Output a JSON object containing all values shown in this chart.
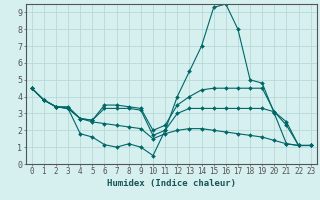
{
  "xlabel": "Humidex (Indice chaleur)",
  "ylabel": "",
  "bg_color": "#d6efef",
  "grid_color": "#b8d8d8",
  "line_color": "#006666",
  "xlim": [
    -0.5,
    23.5
  ],
  "ylim": [
    0,
    9.5
  ],
  "lines": [
    {
      "x": [
        0,
        1,
        2,
        3,
        4,
        5,
        6,
        7,
        8,
        9,
        10,
        11,
        12,
        13,
        14,
        15,
        16,
        17,
        18,
        19,
        20,
        21,
        22,
        23
      ],
      "y": [
        4.5,
        3.8,
        3.4,
        3.3,
        1.8,
        1.6,
        1.15,
        1.0,
        1.2,
        1.0,
        0.5,
        2.0,
        4.0,
        5.5,
        7.0,
        9.3,
        9.5,
        8.0,
        5.0,
        4.8,
        3.0,
        1.2,
        1.1,
        1.1
      ]
    },
    {
      "x": [
        0,
        1,
        2,
        3,
        4,
        5,
        6,
        7,
        8,
        9,
        10,
        11,
        12,
        13,
        14,
        15,
        16,
        17,
        18,
        19,
        20,
        21,
        22,
        23
      ],
      "y": [
        4.5,
        3.8,
        3.4,
        3.3,
        2.7,
        2.6,
        3.5,
        3.5,
        3.4,
        3.3,
        2.0,
        2.3,
        3.5,
        4.0,
        4.4,
        4.5,
        4.5,
        4.5,
        4.5,
        4.5,
        3.1,
        2.5,
        1.1,
        1.1
      ]
    },
    {
      "x": [
        0,
        1,
        2,
        3,
        4,
        5,
        6,
        7,
        8,
        9,
        10,
        11,
        12,
        13,
        14,
        15,
        16,
        17,
        18,
        19,
        20,
        21,
        22,
        23
      ],
      "y": [
        4.5,
        3.8,
        3.4,
        3.3,
        2.7,
        2.6,
        3.3,
        3.3,
        3.3,
        3.2,
        1.7,
        2.0,
        3.0,
        3.3,
        3.3,
        3.3,
        3.3,
        3.3,
        3.3,
        3.3,
        3.1,
        2.3,
        1.1,
        1.1
      ]
    },
    {
      "x": [
        0,
        1,
        2,
        3,
        4,
        5,
        6,
        7,
        8,
        9,
        10,
        11,
        12,
        13,
        14,
        15,
        16,
        17,
        18,
        19,
        20,
        21,
        22,
        23
      ],
      "y": [
        4.5,
        3.8,
        3.4,
        3.4,
        2.7,
        2.5,
        2.4,
        2.3,
        2.2,
        2.1,
        1.5,
        1.8,
        2.0,
        2.1,
        2.1,
        2.0,
        1.9,
        1.8,
        1.7,
        1.6,
        1.4,
        1.2,
        1.1,
        1.1
      ]
    }
  ],
  "xtick_labels": [
    "0",
    "1",
    "2",
    "3",
    "4",
    "5",
    "6",
    "7",
    "8",
    "9",
    "10",
    "11",
    "12",
    "13",
    "14",
    "15",
    "16",
    "17",
    "18",
    "19",
    "20",
    "21",
    "22",
    "23"
  ],
  "ytick_labels": [
    "0",
    "1",
    "2",
    "3",
    "4",
    "5",
    "6",
    "7",
    "8",
    "9"
  ],
  "tick_fontsize": 5.5,
  "xlabel_fontsize": 6.5,
  "marker_size": 2.0
}
